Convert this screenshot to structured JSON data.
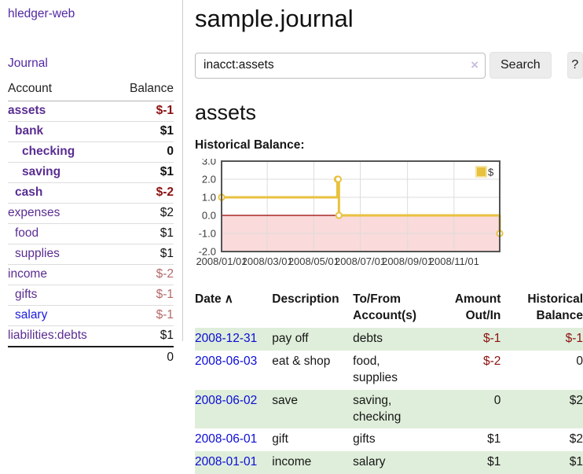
{
  "sidebar": {
    "app_title": "hledger-web",
    "nav": {
      "journal_label": "Journal"
    },
    "accounts_table": {
      "headers": {
        "account": "Account",
        "balance": "Balance"
      },
      "rows": [
        {
          "name": "assets",
          "depth": 0,
          "bold": true,
          "name_style": "purple",
          "balance": "$-1",
          "balance_style": "neg-dark"
        },
        {
          "name": "bank",
          "depth": 1,
          "bold": true,
          "name_style": "purple",
          "balance": "$1",
          "balance_style": "plain"
        },
        {
          "name": "checking",
          "depth": 2,
          "bold": true,
          "name_style": "purple",
          "balance": "0",
          "balance_style": "plain"
        },
        {
          "name": "saving",
          "depth": 2,
          "bold": true,
          "name_style": "purple",
          "balance": "$1",
          "balance_style": "plain"
        },
        {
          "name": "cash",
          "depth": 1,
          "bold": true,
          "name_style": "purple",
          "balance": "$-2",
          "balance_style": "neg-dark"
        },
        {
          "name": "expenses",
          "depth": 0,
          "bold": false,
          "name_style": "purple",
          "balance": "$2",
          "balance_style": "plain"
        },
        {
          "name": "food",
          "depth": 1,
          "bold": false,
          "name_style": "purple",
          "balance": "$1",
          "balance_style": "plain"
        },
        {
          "name": "supplies",
          "depth": 1,
          "bold": false,
          "name_style": "purple",
          "balance": "$1",
          "balance_style": "plain"
        },
        {
          "name": "income",
          "depth": 0,
          "bold": false,
          "name_style": "purple",
          "balance": "$-2",
          "balance_style": "neg-light"
        },
        {
          "name": "gifts",
          "depth": 1,
          "bold": false,
          "name_style": "purple",
          "balance": "$-1",
          "balance_style": "neg-light"
        },
        {
          "name": "salary",
          "depth": 1,
          "bold": false,
          "name_style": "blue",
          "balance": "$-1",
          "balance_style": "neg-light"
        },
        {
          "name": "liabilities:debts",
          "depth": 0,
          "bold": false,
          "name_style": "purple",
          "balance": "$1",
          "balance_style": "plain"
        }
      ],
      "total": "0"
    }
  },
  "header": {
    "title": "sample.journal"
  },
  "search": {
    "value": "inacct:assets",
    "clear_icon": "×",
    "button_label": "Search",
    "help_label": "?"
  },
  "account_page": {
    "heading": "assets",
    "chart_label": "Historical Balance:"
  },
  "chart_data": {
    "type": "line",
    "step": true,
    "title": "Historical Balance",
    "series": [
      {
        "name": "$",
        "color": "#e8c23f",
        "points": [
          [
            "2008-01-01",
            1
          ],
          [
            "2008-06-01",
            2
          ],
          [
            "2008-06-02",
            2
          ],
          [
            "2008-06-03",
            0
          ],
          [
            "2008-12-31",
            -1
          ]
        ]
      }
    ],
    "ylim": [
      -2,
      3
    ],
    "yticks": [
      3.0,
      2.0,
      1.0,
      0.0,
      -1.0,
      -2.0
    ],
    "xticks": [
      "2008/01/01",
      "2008/03/01",
      "2008/05/01",
      "2008/07/01",
      "2008/09/01",
      "2008/11/01"
    ],
    "grid": true,
    "legend_position": "top-right",
    "negative_region_color": "#fadada",
    "zero_line_color": "#990000",
    "grid_color": "#dcdcdc",
    "border_color": "#545454",
    "legend_box_border": "#f4e3a1"
  },
  "register_table": {
    "headers": {
      "date": "Date",
      "sort_icon": "∧",
      "description": "Description",
      "accounts": "To/From Account(s)",
      "amount": "Amount Out/In",
      "balance": "Historical Balance"
    },
    "rows": [
      {
        "date": "2008-12-31",
        "description": "pay off",
        "accounts": "debts",
        "amount": "$-1",
        "amount_neg": true,
        "balance": "$-1",
        "balance_neg": true,
        "shaded": true
      },
      {
        "date": "2008-06-03",
        "description": "eat & shop",
        "accounts": "food, supplies",
        "amount": "$-2",
        "amount_neg": true,
        "balance": "0",
        "balance_neg": false,
        "shaded": false
      },
      {
        "date": "2008-06-02",
        "description": "save",
        "accounts": "saving, checking",
        "amount": "0",
        "amount_neg": false,
        "balance": "$2",
        "balance_neg": false,
        "shaded": true
      },
      {
        "date": "2008-06-01",
        "description": "gift",
        "accounts": "gifts",
        "amount": "$1",
        "amount_neg": false,
        "balance": "$2",
        "balance_neg": false,
        "shaded": false
      },
      {
        "date": "2008-01-01",
        "description": "income",
        "accounts": "salary",
        "amount": "$1",
        "amount_neg": false,
        "balance": "$1",
        "balance_neg": false,
        "shaded": true
      }
    ]
  },
  "colors": {
    "link_purple": "#5a2d91",
    "link_blue": "#1a1adf",
    "negative_dark": "#8c1111",
    "negative_light": "#b46a6a",
    "row_green": "#dfeeda",
    "chart_gold": "#e8c23f"
  }
}
